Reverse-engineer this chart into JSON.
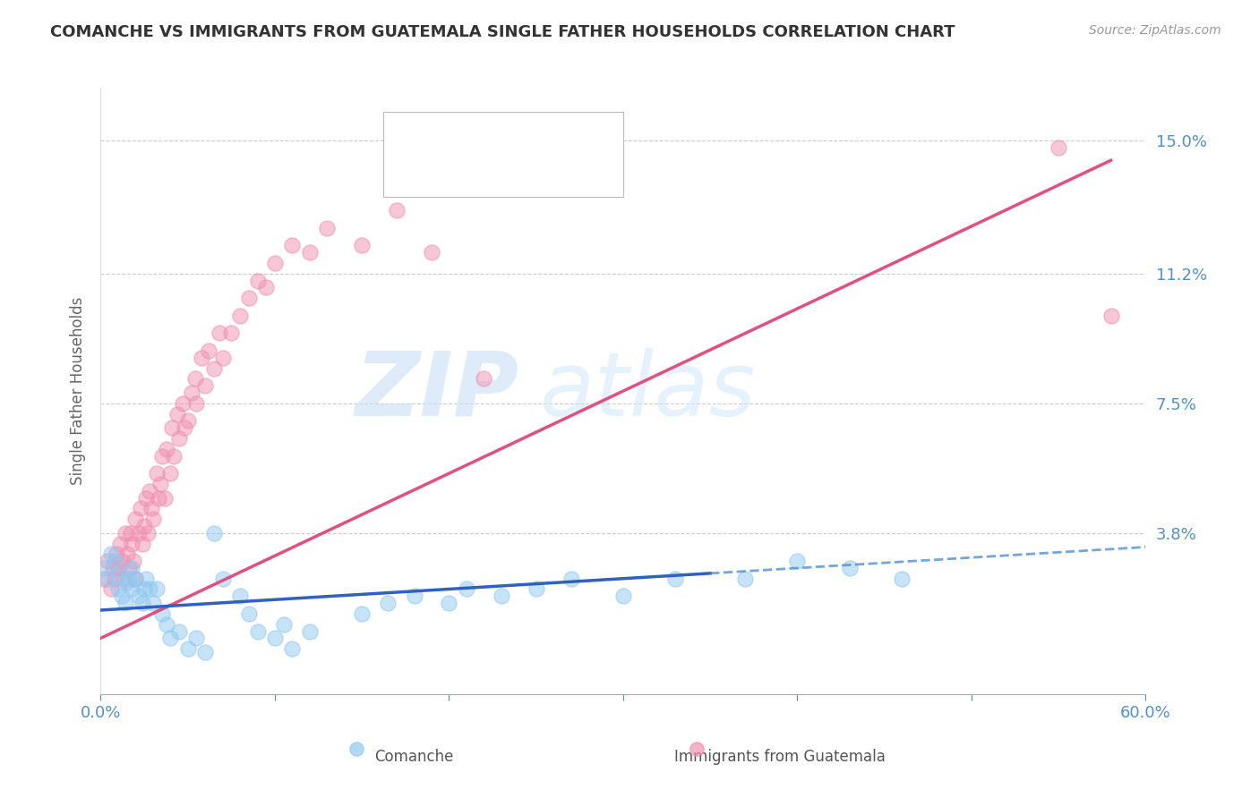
{
  "title": "COMANCHE VS IMMIGRANTS FROM GUATEMALA SINGLE FATHER HOUSEHOLDS CORRELATION CHART",
  "source": "Source: ZipAtlas.com",
  "ylabel": "Single Father Households",
  "watermark_zip": "ZIP",
  "watermark_atlas": "atlas",
  "xlim": [
    0.0,
    0.6
  ],
  "ylim": [
    -0.008,
    0.165
  ],
  "xticks": [
    0.0,
    0.1,
    0.2,
    0.3,
    0.4,
    0.5,
    0.6
  ],
  "xtick_labels": [
    "0.0%",
    "",
    "",
    "",
    "",
    "",
    "60.0%"
  ],
  "ytick_positions": [
    0.0,
    0.038,
    0.075,
    0.112,
    0.15
  ],
  "ytick_labels": [
    "",
    "3.8%",
    "7.5%",
    "11.2%",
    "15.0%"
  ],
  "color_comanche": "#90c8f0",
  "color_guatemala": "#f090b0",
  "color_line_comanche": "#3060c0",
  "color_line_guatemala": "#e05080",
  "color_blue_label": "#5090d0",
  "comanche_x": [
    0.002,
    0.004,
    0.006,
    0.008,
    0.01,
    0.01,
    0.012,
    0.014,
    0.015,
    0.016,
    0.018,
    0.018,
    0.02,
    0.022,
    0.024,
    0.025,
    0.026,
    0.028,
    0.03,
    0.032,
    0.035,
    0.038,
    0.04,
    0.045,
    0.05,
    0.055,
    0.06,
    0.065,
    0.07,
    0.08,
    0.085,
    0.09,
    0.1,
    0.105,
    0.11,
    0.12,
    0.15,
    0.165,
    0.18,
    0.2,
    0.21,
    0.23,
    0.25,
    0.27,
    0.3,
    0.33,
    0.37,
    0.4,
    0.43,
    0.46
  ],
  "comanche_y": [
    0.028,
    0.025,
    0.032,
    0.03,
    0.022,
    0.026,
    0.02,
    0.018,
    0.024,
    0.025,
    0.022,
    0.028,
    0.025,
    0.02,
    0.018,
    0.022,
    0.025,
    0.022,
    0.018,
    0.022,
    0.015,
    0.012,
    0.008,
    0.01,
    0.005,
    0.008,
    0.004,
    0.038,
    0.025,
    0.02,
    0.015,
    0.01,
    0.008,
    0.012,
    0.005,
    0.01,
    0.015,
    0.018,
    0.02,
    0.018,
    0.022,
    0.02,
    0.022,
    0.025,
    0.02,
    0.025,
    0.025,
    0.03,
    0.028,
    0.025
  ],
  "guatemala_x": [
    0.002,
    0.004,
    0.006,
    0.007,
    0.008,
    0.009,
    0.01,
    0.011,
    0.012,
    0.013,
    0.014,
    0.015,
    0.016,
    0.017,
    0.018,
    0.019,
    0.02,
    0.02,
    0.022,
    0.023,
    0.024,
    0.025,
    0.026,
    0.027,
    0.028,
    0.029,
    0.03,
    0.032,
    0.033,
    0.034,
    0.035,
    0.037,
    0.038,
    0.04,
    0.041,
    0.042,
    0.044,
    0.045,
    0.047,
    0.048,
    0.05,
    0.052,
    0.054,
    0.055,
    0.058,
    0.06,
    0.062,
    0.065,
    0.068,
    0.07,
    0.075,
    0.08,
    0.085,
    0.09,
    0.095,
    0.1,
    0.11,
    0.12,
    0.13,
    0.15,
    0.17,
    0.19,
    0.22,
    0.55,
    0.58
  ],
  "guatemala_y": [
    0.025,
    0.03,
    0.022,
    0.028,
    0.025,
    0.032,
    0.028,
    0.035,
    0.03,
    0.025,
    0.038,
    0.032,
    0.028,
    0.038,
    0.035,
    0.03,
    0.042,
    0.025,
    0.038,
    0.045,
    0.035,
    0.04,
    0.048,
    0.038,
    0.05,
    0.045,
    0.042,
    0.055,
    0.048,
    0.052,
    0.06,
    0.048,
    0.062,
    0.055,
    0.068,
    0.06,
    0.072,
    0.065,
    0.075,
    0.068,
    0.07,
    0.078,
    0.082,
    0.075,
    0.088,
    0.08,
    0.09,
    0.085,
    0.095,
    0.088,
    0.095,
    0.1,
    0.105,
    0.11,
    0.108,
    0.115,
    0.12,
    0.118,
    0.125,
    0.12,
    0.13,
    0.118,
    0.082,
    0.148,
    0.1
  ]
}
